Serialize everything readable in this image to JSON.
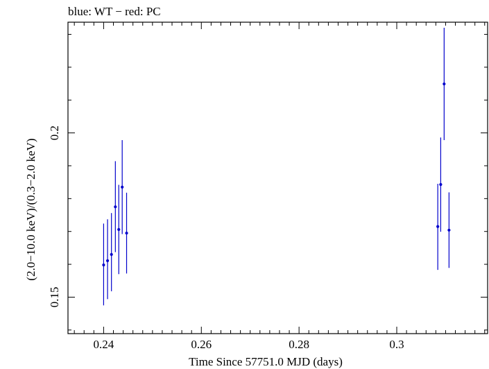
{
  "chart_data": {
    "type": "scatter",
    "title": "blue: WT − red: PC",
    "xlabel": "Time Since 57751.0 MJD (days)",
    "ylabel": "(2.0−10.0 keV)/(0.3−2.0 keV)",
    "xlim": [
      0.2327,
      0.3186
    ],
    "ylim": [
      0.1389,
      0.2337
    ],
    "x_ticks": [
      0.24,
      0.26,
      0.28,
      0.3
    ],
    "x_tick_labels": [
      "0.24",
      "0.26",
      "0.28",
      "0.3"
    ],
    "y_ticks": [
      0.15,
      0.2
    ],
    "y_tick_labels": [
      "0.15",
      "0.2"
    ],
    "grid": false,
    "series": [
      {
        "color": "#0000cc",
        "points": [
          {
            "x": 0.24,
            "y": 0.1598,
            "err_low": 0.0123,
            "err_high": 0.0126
          },
          {
            "x": 0.2408,
            "y": 0.1611,
            "err_low": 0.0117,
            "err_high": 0.0126
          },
          {
            "x": 0.2416,
            "y": 0.163,
            "err_low": 0.0112,
            "err_high": 0.0126
          },
          {
            "x": 0.2424,
            "y": 0.1775,
            "err_low": 0.0138,
            "err_high": 0.0139
          },
          {
            "x": 0.2431,
            "y": 0.1706,
            "err_low": 0.0136,
            "err_high": 0.0136
          },
          {
            "x": 0.2438,
            "y": 0.1835,
            "err_low": 0.0143,
            "err_high": 0.0143
          },
          {
            "x": 0.2447,
            "y": 0.1695,
            "err_low": 0.0123,
            "err_high": 0.0123
          },
          {
            "x": 0.3084,
            "y": 0.1715,
            "err_low": 0.0132,
            "err_high": 0.013
          },
          {
            "x": 0.309,
            "y": 0.1843,
            "err_low": 0.0144,
            "err_high": 0.0143
          },
          {
            "x": 0.3097,
            "y": 0.2149,
            "err_low": 0.0171,
            "err_high": 0.0171
          },
          {
            "x": 0.3107,
            "y": 0.1704,
            "err_low": 0.0115,
            "err_high": 0.0115
          }
        ]
      }
    ]
  }
}
